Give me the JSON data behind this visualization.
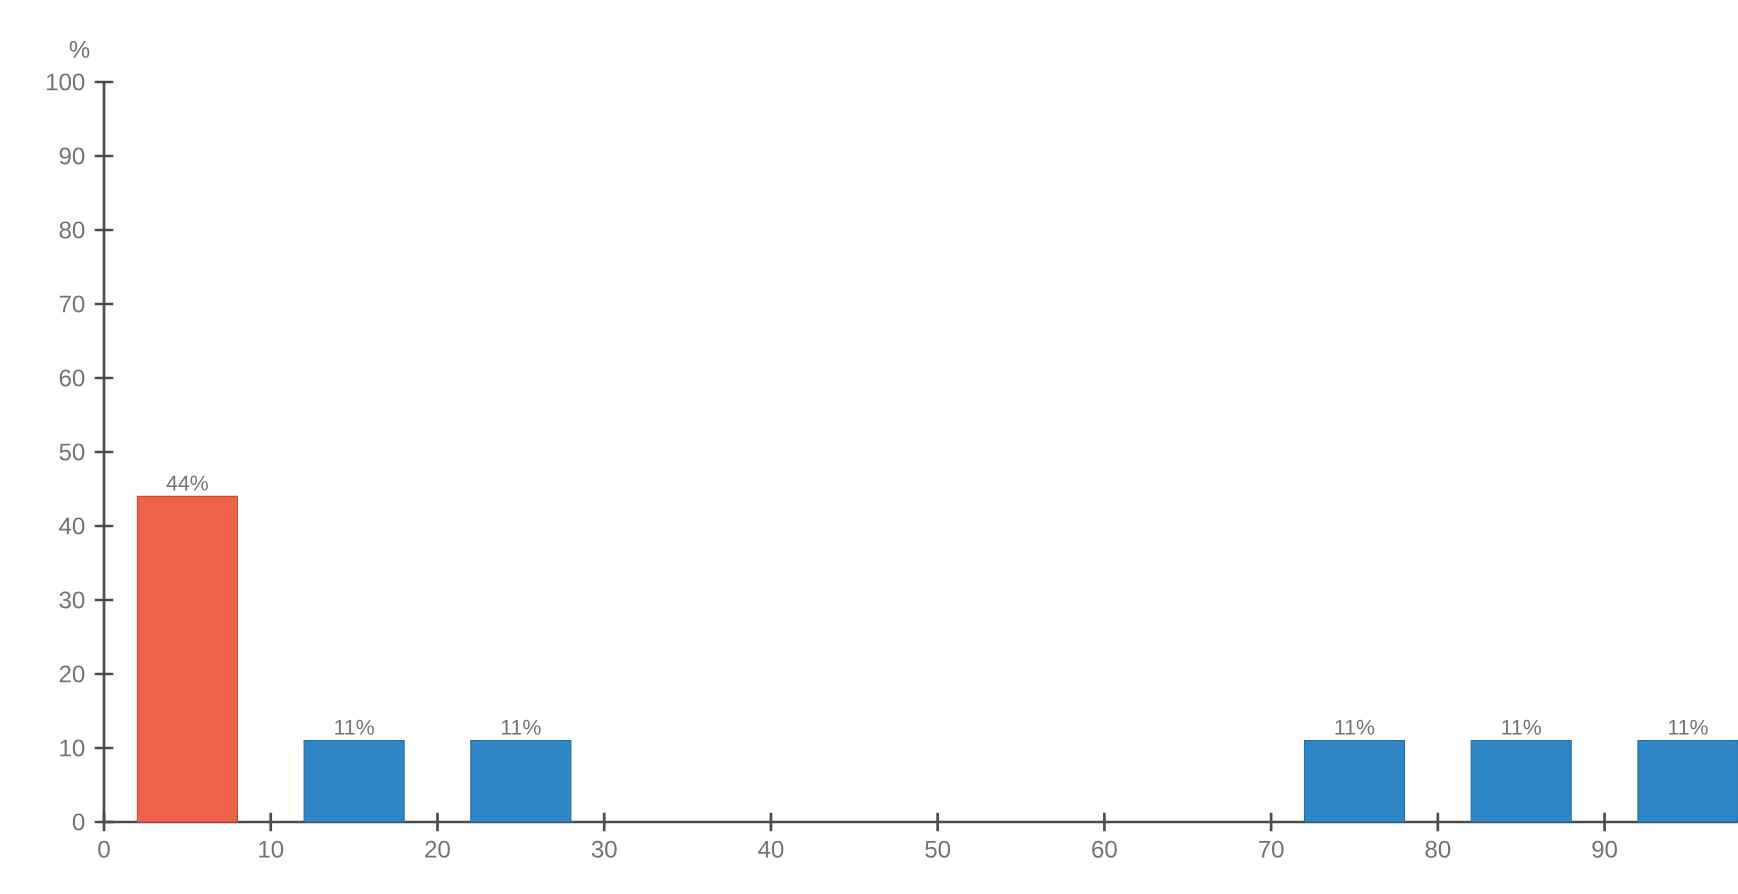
{
  "chart_data": {
    "type": "bar",
    "ylabel": "%",
    "x": [
      5,
      15,
      25,
      75,
      85,
      95
    ],
    "values": [
      44,
      11,
      11,
      11,
      11,
      11
    ],
    "colors": [
      "#ee6249",
      "#2f86c6",
      "#2f86c6",
      "#2f86c6",
      "#2f86c6",
      "#2f86c6"
    ],
    "value_labels": [
      "44%",
      "11%",
      "11%",
      "11%",
      "11%",
      "11%"
    ],
    "xlim": [
      0,
      98
    ],
    "ylim": [
      0,
      100
    ],
    "xticks": [
      0,
      10,
      20,
      30,
      40,
      50,
      60,
      70,
      80,
      90
    ],
    "yticks": [
      0,
      10,
      20,
      30,
      40,
      50,
      60,
      70,
      80,
      90,
      100
    ]
  }
}
